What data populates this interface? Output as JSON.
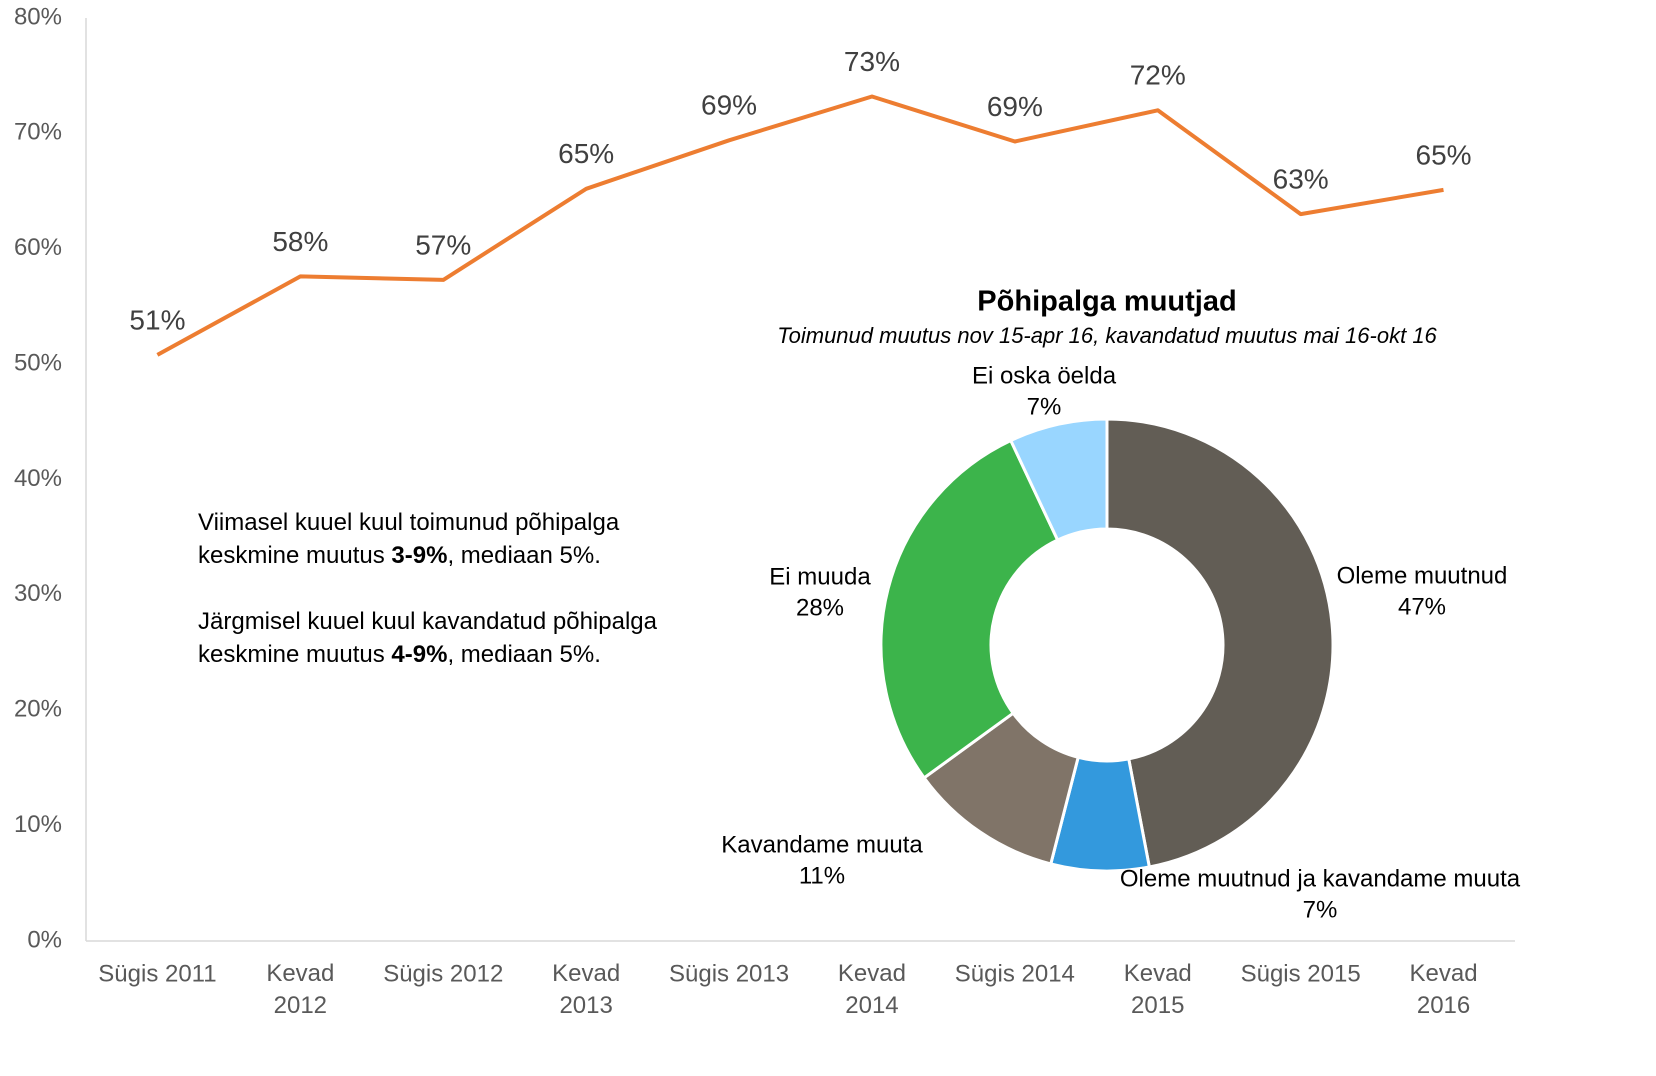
{
  "chart_data": [
    {
      "type": "line",
      "categories": [
        "Sügis 2011",
        "Kevad 2012",
        "Sügis 2012",
        "Kevad 2013",
        "Sügis 2013",
        "Kevad 2014",
        "Sügis 2014",
        "Kevad 2015",
        "Sügis 2015",
        "Kevad 2016"
      ],
      "values": [
        50.8,
        57.6,
        57.3,
        65.2,
        69.4,
        73.2,
        69.3,
        72.0,
        63.0,
        65.1
      ],
      "value_labels": [
        "51%",
        "58%",
        "57%",
        "65%",
        "69%",
        "73%",
        "69%",
        "72%",
        "63%",
        "65%"
      ],
      "color": "#ed7d31",
      "ylim": [
        0,
        80
      ],
      "yticks": [
        {
          "value": 0,
          "label": "0%"
        },
        {
          "value": 10,
          "label": "10%"
        },
        {
          "value": 20,
          "label": "20%"
        },
        {
          "value": 30,
          "label": "30%"
        },
        {
          "value": 40,
          "label": "40%"
        },
        {
          "value": 50,
          "label": "50%"
        },
        {
          "value": 60,
          "label": "60%"
        },
        {
          "value": 70,
          "label": "70%"
        },
        {
          "value": 80,
          "label": "80%"
        }
      ],
      "grid": false,
      "annotations": [
        [
          "Viimasel kuuel kuul toimunud põhipalga keskmine muutus ",
          "3-9%",
          ", mediaan 5%."
        ],
        [
          "Järgmisel kuuel kuul kavandatud põhipalga keskmine muutus ",
          "4-9%",
          ", mediaan 5%."
        ]
      ]
    },
    {
      "type": "donut",
      "title": "Põhipalga muutjad",
      "subtitle": "Toimunud muutus nov 15-apr 16, kavandatud muutus mai 16-okt 16",
      "categories": [
        "Oleme muutnud",
        "Oleme muutnud ja kavandame muuta",
        "Kavandame muuta",
        "Ei muuda",
        "Ei oska öelda"
      ],
      "values": [
        47,
        7,
        11,
        28,
        7
      ],
      "value_labels": [
        "47%",
        "7%",
        "11%",
        "28%",
        "7%"
      ],
      "colors": [
        "#625d55",
        "#3399dd",
        "#807468",
        "#3cb44b",
        "#99d6ff"
      ]
    }
  ]
}
